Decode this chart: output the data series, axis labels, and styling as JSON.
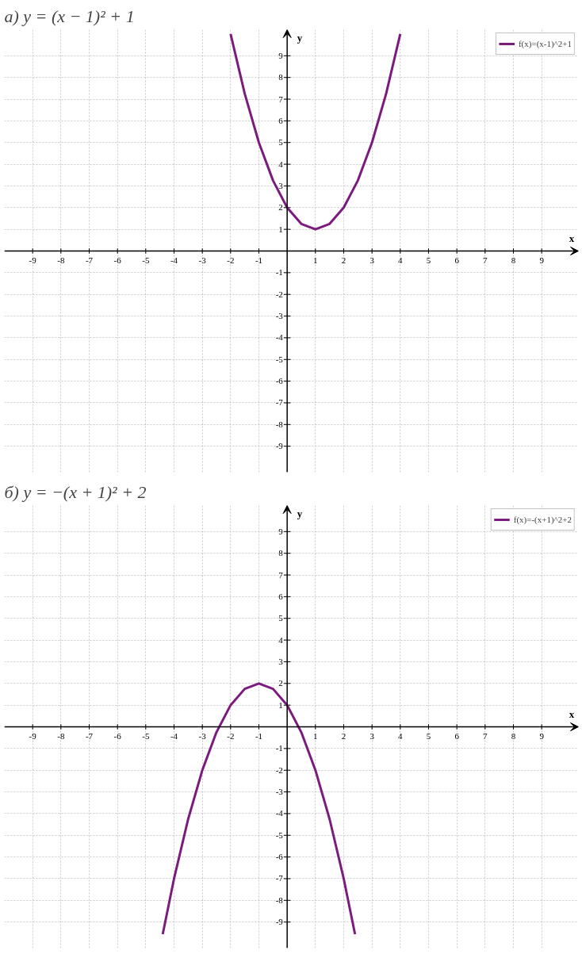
{
  "chart_data": [
    {
      "type": "line",
      "title": "а) y = (x − 1)² + 1",
      "xlabel": "x",
      "ylabel": "y",
      "xlim": [
        -10,
        10.3
      ],
      "ylim": [
        -10.2,
        10.2
      ],
      "xticks": [
        -9,
        -8,
        -7,
        -6,
        -5,
        -4,
        -3,
        -2,
        -1,
        1,
        2,
        3,
        4,
        5,
        6,
        7,
        8,
        9
      ],
      "yticks": [
        -9,
        -8,
        -7,
        -6,
        -5,
        -4,
        -3,
        -2,
        -1,
        1,
        2,
        3,
        4,
        5,
        6,
        7,
        8,
        9
      ],
      "grid": true,
      "legend": "top right",
      "series": [
        {
          "name": "f(x)=(x-1)^2+1",
          "color": "#7b1b7e",
          "x": [
            -2.0,
            -1.5,
            -1.0,
            -0.5,
            0.0,
            0.5,
            1.0,
            1.5,
            2.0,
            2.5,
            3.0,
            3.5,
            4.0
          ],
          "values": [
            10.0,
            7.25,
            5.0,
            3.25,
            2.0,
            1.25,
            1.0,
            1.25,
            2.0,
            3.25,
            5.0,
            7.25,
            10.0
          ]
        }
      ]
    },
    {
      "type": "line",
      "title": "б) y = −(x + 1)² + 2",
      "xlabel": "x",
      "ylabel": "y",
      "xlim": [
        -10,
        10.3
      ],
      "ylim": [
        -10.2,
        10.2
      ],
      "xticks": [
        -9,
        -8,
        -7,
        -6,
        -5,
        -4,
        -3,
        -2,
        -1,
        1,
        2,
        3,
        4,
        5,
        6,
        7,
        8,
        9
      ],
      "yticks": [
        -9,
        -8,
        -7,
        -6,
        -5,
        -4,
        -3,
        -2,
        -1,
        1,
        2,
        3,
        4,
        5,
        6,
        7,
        8,
        9
      ],
      "grid": true,
      "legend": "top right",
      "series": [
        {
          "name": "f(x)=-(x+1)^2+2",
          "color": "#7b1b7e",
          "x": [
            -4.4,
            -4.0,
            -3.5,
            -3.0,
            -2.5,
            -2.0,
            -1.5,
            -1.0,
            -0.5,
            0.0,
            0.5,
            1.0,
            1.5,
            2.0,
            2.4
          ],
          "values": [
            -9.56,
            -7.0,
            -4.25,
            -2.0,
            -0.25,
            1.0,
            1.75,
            2.0,
            1.75,
            1.0,
            -0.25,
            -2.0,
            -4.25,
            -7.0,
            -9.56
          ]
        }
      ]
    }
  ]
}
